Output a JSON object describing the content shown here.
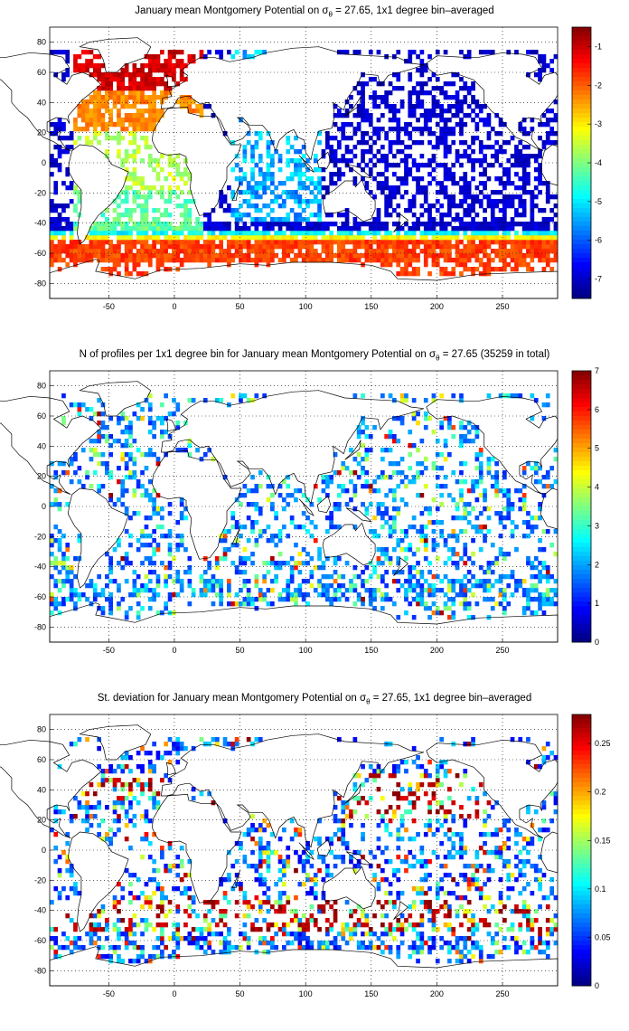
{
  "panels": [
    {
      "title_pre": "January mean Montgomery Potential on σ",
      "title_sub": "θ",
      "title_post": " = 27.65, 1x1 degree bin–averaged",
      "colorbar": {
        "ticks": [
          "-1",
          "-2",
          "-3",
          "-4",
          "-5",
          "-6",
          "-7"
        ],
        "tick_values": [
          -1,
          -2,
          -3,
          -4,
          -5,
          -6,
          -7
        ],
        "min": -7.5,
        "max": -0.5
      },
      "field": "montgomery"
    },
    {
      "title_pre": "N of profiles per 1x1 degree bin for January mean Montgomery Potential on σ",
      "title_sub": "θ",
      "title_post": " = 27.65 (35259 in total)",
      "colorbar": {
        "ticks": [
          "7",
          "6",
          "5",
          "4",
          "3",
          "2",
          "1",
          "0"
        ],
        "tick_values": [
          7,
          6,
          5,
          4,
          3,
          2,
          1,
          0
        ],
        "min": 0,
        "max": 7
      },
      "field": "count"
    },
    {
      "title_pre": "St. deviation for January mean Montgomery Potential on σ",
      "title_sub": "θ",
      "title_post": " = 27.65, 1x1 degree bin–averaged",
      "colorbar": {
        "ticks": [
          "0.25",
          "0.2",
          "0.15",
          "0.1",
          "0.05",
          "0"
        ],
        "tick_values": [
          0.25,
          0.2,
          0.15,
          0.1,
          0.05,
          0
        ],
        "min": 0,
        "max": 0.28
      },
      "field": "stdev"
    }
  ],
  "axes": {
    "x_ticks": [
      "-50",
      "0",
      "50",
      "100",
      "150",
      "200",
      "250"
    ],
    "x_values": [
      -50,
      0,
      50,
      100,
      150,
      200,
      250
    ],
    "y_ticks": [
      "80",
      "60",
      "40",
      "20",
      "0",
      "-20",
      "-40",
      "-60",
      "-80"
    ],
    "y_values": [
      80,
      60,
      40,
      20,
      0,
      -20,
      -40,
      -60,
      -80
    ],
    "xlim": [
      -95,
      292
    ],
    "ylim": [
      -90,
      90
    ],
    "grid": "dotted"
  },
  "colors": {
    "land_outline": "#000000",
    "colormap": "jet"
  }
}
